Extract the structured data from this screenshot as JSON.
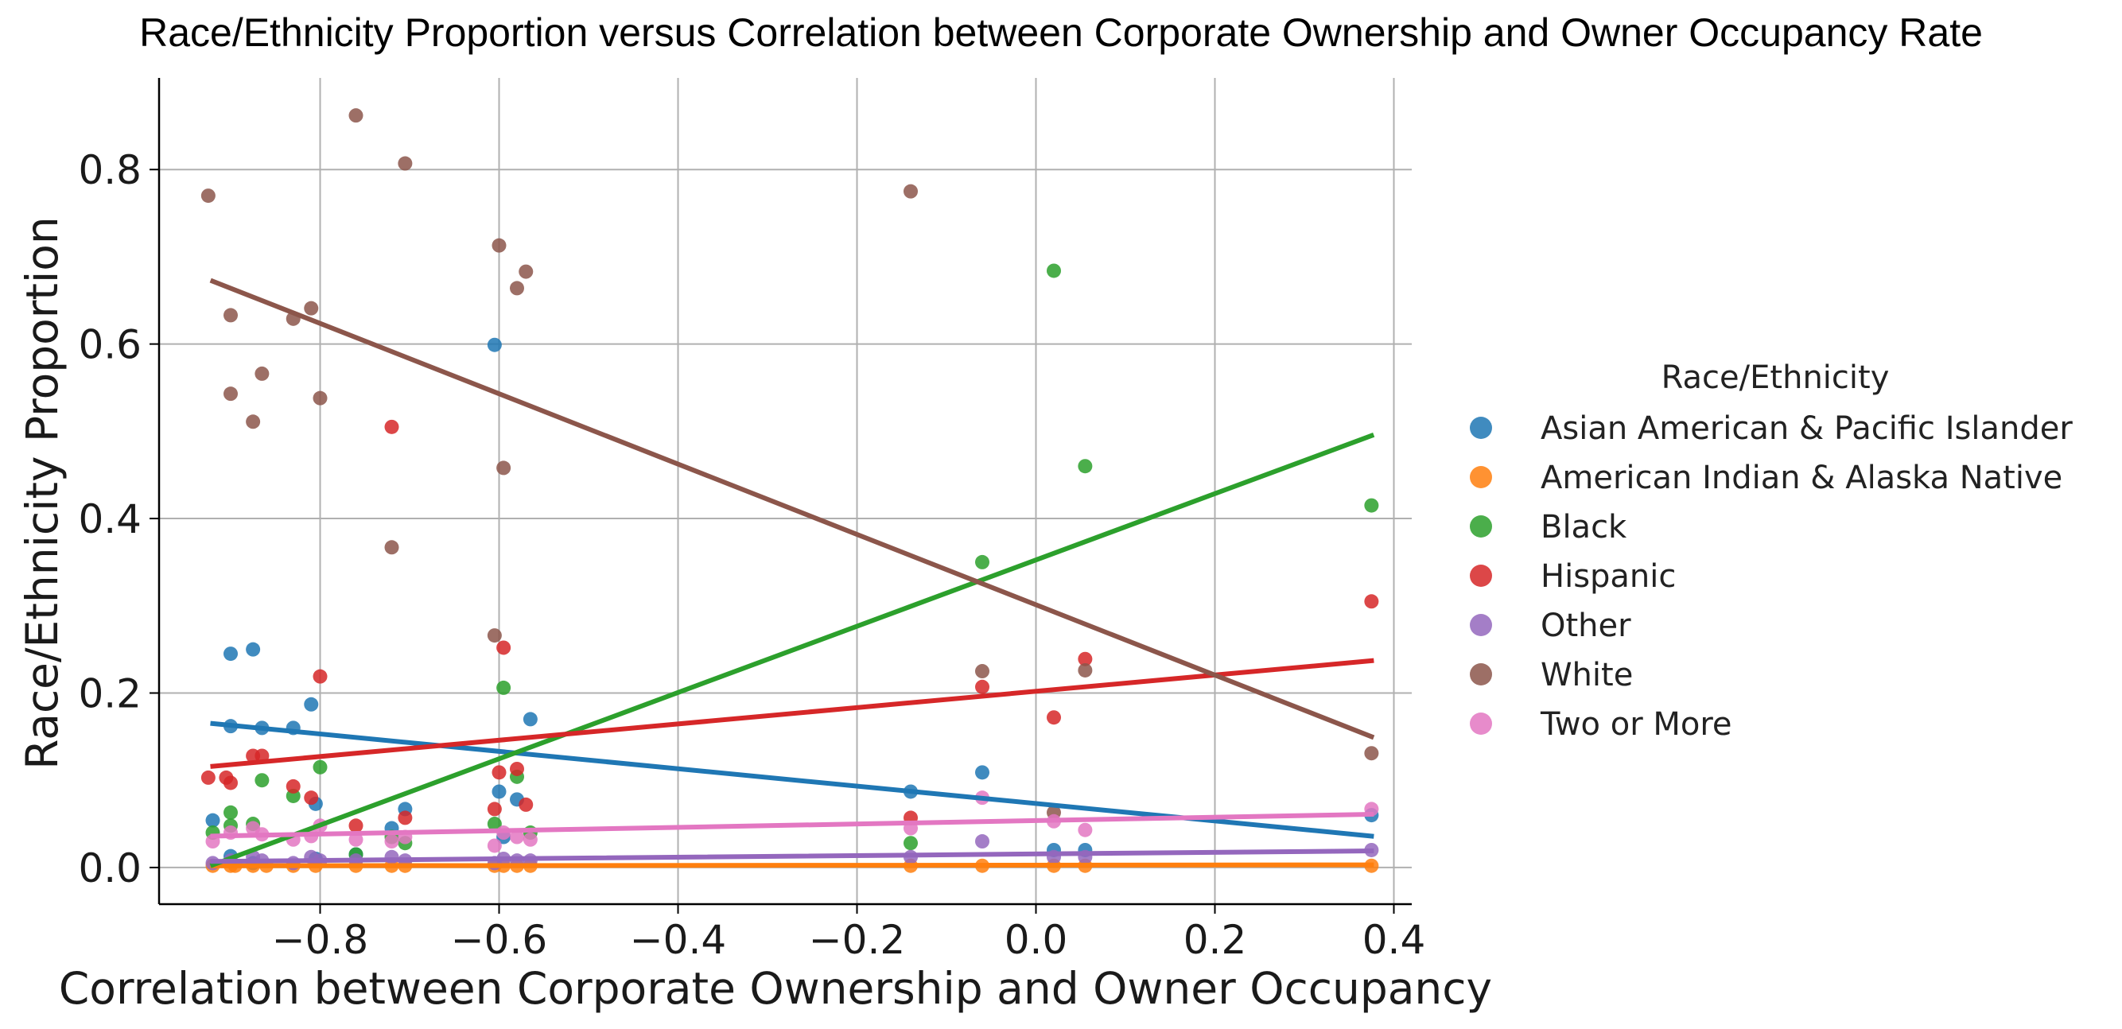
{
  "chart_data": {
    "type": "scatter",
    "title": "Race/Ethnicity Proportion versus Correlation between Corporate Ownership and Owner Occupancy Rate",
    "xlabel": "Correlation between Corporate Ownership and Owner Occupancy",
    "ylabel": "Race/Ethnicity Proportion",
    "xlim": [
      -0.98,
      0.42
    ],
    "ylim": [
      -0.042,
      0.905
    ],
    "xticks": [
      -0.8,
      -0.6,
      -0.4,
      -0.2,
      0.0,
      0.2,
      0.4
    ],
    "xtick_labels": [
      "−0.8",
      "−0.6",
      "−0.4",
      "−0.2",
      "0.0",
      "0.2",
      "0.4"
    ],
    "yticks": [
      0.0,
      0.2,
      0.4,
      0.6,
      0.8
    ],
    "ytick_labels": [
      "0.0",
      "0.2",
      "0.4",
      "0.6",
      "0.8"
    ],
    "grid": true,
    "legend": {
      "title": "Race/Ethnicity",
      "placement": "right-outside"
    },
    "series": [
      {
        "name": "Asian American & Pacific Islander",
        "color": "#1f77b4",
        "points": [
          [
            -0.92,
            0.054
          ],
          [
            -0.9,
            0.245
          ],
          [
            -0.9,
            0.162
          ],
          [
            -0.9,
            0.013
          ],
          [
            -0.875,
            0.25
          ],
          [
            -0.875,
            0.005
          ],
          [
            -0.865,
            0.16
          ],
          [
            -0.83,
            0.16
          ],
          [
            -0.81,
            0.187
          ],
          [
            -0.805,
            0.073
          ],
          [
            -0.805,
            0.01
          ],
          [
            -0.76,
            0.015
          ],
          [
            -0.72,
            0.045
          ],
          [
            -0.705,
            0.067
          ],
          [
            -0.605,
            0.599
          ],
          [
            -0.6,
            0.087
          ],
          [
            -0.595,
            0.035
          ],
          [
            -0.58,
            0.078
          ],
          [
            -0.565,
            0.17
          ],
          [
            -0.14,
            0.087
          ],
          [
            -0.06,
            0.109
          ],
          [
            0.02,
            0.02
          ],
          [
            0.055,
            0.02
          ],
          [
            0.375,
            0.06
          ]
        ],
        "trend": [
          [
            -0.92,
            0.165
          ],
          [
            0.375,
            0.036
          ]
        ]
      },
      {
        "name": "American Indian & Alaska Native",
        "color": "#ff7f0e",
        "points": [
          [
            -0.92,
            0.002
          ],
          [
            -0.9,
            0.002
          ],
          [
            -0.895,
            0.002
          ],
          [
            -0.875,
            0.002
          ],
          [
            -0.86,
            0.002
          ],
          [
            -0.83,
            0.002
          ],
          [
            -0.805,
            0.002
          ],
          [
            -0.76,
            0.002
          ],
          [
            -0.72,
            0.002
          ],
          [
            -0.705,
            0.002
          ],
          [
            -0.605,
            0.002
          ],
          [
            -0.595,
            0.002
          ],
          [
            -0.58,
            0.002
          ],
          [
            -0.565,
            0.002
          ],
          [
            -0.14,
            0.002
          ],
          [
            -0.06,
            0.002
          ],
          [
            0.02,
            0.002
          ],
          [
            0.055,
            0.002
          ],
          [
            0.375,
            0.002
          ]
        ],
        "trend": [
          [
            -0.92,
            0.002
          ],
          [
            0.375,
            0.003
          ]
        ]
      },
      {
        "name": "Black",
        "color": "#2ca02c",
        "points": [
          [
            -0.92,
            0.04
          ],
          [
            -0.9,
            0.048
          ],
          [
            -0.9,
            0.063
          ],
          [
            -0.875,
            0.05
          ],
          [
            -0.865,
            0.1
          ],
          [
            -0.83,
            0.082
          ],
          [
            -0.8,
            0.115
          ],
          [
            -0.76,
            0.015
          ],
          [
            -0.72,
            0.035
          ],
          [
            -0.705,
            0.028
          ],
          [
            -0.605,
            0.05
          ],
          [
            -0.595,
            0.206
          ],
          [
            -0.58,
            0.104
          ],
          [
            -0.565,
            0.04
          ],
          [
            -0.14,
            0.028
          ],
          [
            -0.06,
            0.35
          ],
          [
            0.02,
            0.684
          ],
          [
            0.055,
            0.46
          ],
          [
            0.375,
            0.415
          ]
        ],
        "trend": [
          [
            -0.92,
            0.003
          ],
          [
            0.375,
            0.495
          ]
        ]
      },
      {
        "name": "Hispanic",
        "color": "#d62728",
        "points": [
          [
            -0.925,
            0.103
          ],
          [
            -0.905,
            0.103
          ],
          [
            -0.9,
            0.097
          ],
          [
            -0.875,
            0.128
          ],
          [
            -0.865,
            0.128
          ],
          [
            -0.83,
            0.093
          ],
          [
            -0.81,
            0.08
          ],
          [
            -0.8,
            0.219
          ],
          [
            -0.76,
            0.048
          ],
          [
            -0.72,
            0.505
          ],
          [
            -0.705,
            0.057
          ],
          [
            -0.605,
            0.067
          ],
          [
            -0.6,
            0.109
          ],
          [
            -0.595,
            0.252
          ],
          [
            -0.58,
            0.113
          ],
          [
            -0.57,
            0.072
          ],
          [
            -0.14,
            0.057
          ],
          [
            -0.06,
            0.207
          ],
          [
            0.02,
            0.172
          ],
          [
            0.055,
            0.239
          ],
          [
            0.375,
            0.305
          ]
        ],
        "trend": [
          [
            -0.92,
            0.116
          ],
          [
            0.375,
            0.237
          ]
        ]
      },
      {
        "name": "Other",
        "color": "#9467bd",
        "points": [
          [
            -0.92,
            0.005
          ],
          [
            -0.9,
            0.008
          ],
          [
            -0.875,
            0.012
          ],
          [
            -0.865,
            0.008
          ],
          [
            -0.83,
            0.005
          ],
          [
            -0.81,
            0.012
          ],
          [
            -0.8,
            0.008
          ],
          [
            -0.76,
            0.008
          ],
          [
            -0.72,
            0.012
          ],
          [
            -0.705,
            0.008
          ],
          [
            -0.605,
            0.005
          ],
          [
            -0.595,
            0.01
          ],
          [
            -0.58,
            0.008
          ],
          [
            -0.565,
            0.008
          ],
          [
            -0.14,
            0.012
          ],
          [
            -0.06,
            0.03
          ],
          [
            0.02,
            0.012
          ],
          [
            0.055,
            0.012
          ],
          [
            0.375,
            0.02
          ]
        ],
        "trend": [
          [
            -0.92,
            0.007
          ],
          [
            0.375,
            0.019
          ]
        ]
      },
      {
        "name": "White",
        "color": "#8c564b",
        "points": [
          [
            -0.925,
            0.77
          ],
          [
            -0.9,
            0.633
          ],
          [
            -0.9,
            0.543
          ],
          [
            -0.875,
            0.511
          ],
          [
            -0.865,
            0.566
          ],
          [
            -0.83,
            0.629
          ],
          [
            -0.81,
            0.641
          ],
          [
            -0.8,
            0.538
          ],
          [
            -0.76,
            0.862
          ],
          [
            -0.72,
            0.367
          ],
          [
            -0.705,
            0.807
          ],
          [
            -0.605,
            0.266
          ],
          [
            -0.6,
            0.713
          ],
          [
            -0.595,
            0.458
          ],
          [
            -0.58,
            0.664
          ],
          [
            -0.57,
            0.683
          ],
          [
            -0.14,
            0.775
          ],
          [
            -0.06,
            0.225
          ],
          [
            0.02,
            0.063
          ],
          [
            0.055,
            0.226
          ],
          [
            0.375,
            0.131
          ]
        ],
        "trend": [
          [
            -0.92,
            0.672
          ],
          [
            0.375,
            0.15
          ]
        ]
      },
      {
        "name": "Two or More",
        "color": "#e377c2",
        "points": [
          [
            -0.92,
            0.03
          ],
          [
            -0.9,
            0.04
          ],
          [
            -0.875,
            0.045
          ],
          [
            -0.865,
            0.038
          ],
          [
            -0.83,
            0.032
          ],
          [
            -0.81,
            0.036
          ],
          [
            -0.8,
            0.048
          ],
          [
            -0.76,
            0.032
          ],
          [
            -0.72,
            0.03
          ],
          [
            -0.705,
            0.035
          ],
          [
            -0.605,
            0.025
          ],
          [
            -0.595,
            0.04
          ],
          [
            -0.58,
            0.035
          ],
          [
            -0.565,
            0.032
          ],
          [
            -0.14,
            0.045
          ],
          [
            -0.06,
            0.08
          ],
          [
            0.02,
            0.053
          ],
          [
            0.055,
            0.043
          ],
          [
            0.375,
            0.067
          ]
        ],
        "trend": [
          [
            -0.92,
            0.036
          ],
          [
            0.375,
            0.061
          ]
        ]
      }
    ]
  }
}
